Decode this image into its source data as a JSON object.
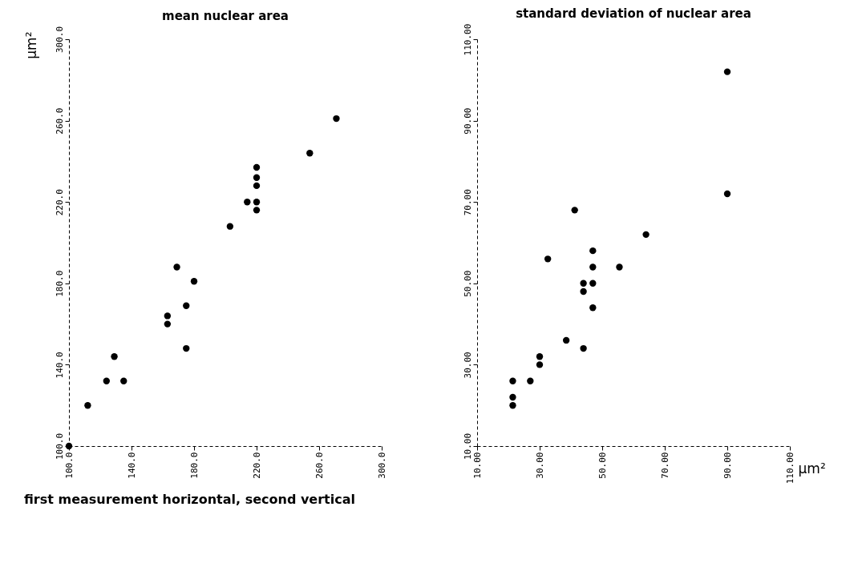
{
  "chart_data": [
    {
      "type": "scatter",
      "title": "mean nuclear area",
      "ylabel": "µm²",
      "annotations": [
        "first measurement horizontal, second vertical"
      ],
      "marker": "circle",
      "grid": false,
      "x": [
        100,
        112,
        124,
        129,
        135,
        163,
        163,
        169,
        175,
        175,
        180,
        203,
        214,
        220,
        220,
        220,
        220,
        220,
        254,
        271
      ],
      "series": [
        {
          "color": "#000000",
          "values": [
            100,
            120,
            132,
            144,
            132,
            160,
            164,
            188,
            169,
            148,
            181,
            208,
            220,
            237,
            232,
            228,
            220,
            216,
            244,
            261
          ]
        }
      ],
      "xlim": [
        100,
        300
      ],
      "ylim": [
        100,
        300
      ],
      "xticks": [
        {
          "value": 100,
          "label": "100.0"
        },
        {
          "value": 140,
          "label": "140.0"
        },
        {
          "value": 180,
          "label": "180.0"
        },
        {
          "value": 220,
          "label": "220.0"
        },
        {
          "value": 260,
          "label": "260.0"
        },
        {
          "value": 300,
          "label": "300.0"
        }
      ],
      "yticks": [
        {
          "value": 100,
          "label": "100.0"
        },
        {
          "value": 140,
          "label": "140.0"
        },
        {
          "value": 180,
          "label": "180.0"
        },
        {
          "value": 220,
          "label": "220.0"
        },
        {
          "value": 260,
          "label": "260.0"
        },
        {
          "value": 300,
          "label": "300.0"
        }
      ]
    },
    {
      "type": "scatter",
      "title": "standard deviation of nuclear area",
      "xlabel": "µm²",
      "marker": "circle",
      "grid": false,
      "x": [
        21.4,
        21.4,
        21.4,
        27,
        30,
        30,
        32.6,
        38.5,
        41.2,
        44,
        44,
        44,
        47,
        47,
        47,
        47,
        55.5,
        64,
        90,
        90
      ],
      "series": [
        {
          "color": "#000000",
          "values": [
            20,
            22,
            26,
            26,
            30,
            32,
            56,
            36,
            68,
            34,
            50,
            48,
            58,
            54,
            50,
            44,
            54,
            62,
            102,
            72
          ]
        }
      ],
      "xlim": [
        10,
        110
      ],
      "ylim": [
        10,
        110
      ],
      "xticks": [
        {
          "value": 10,
          "label": "10.00"
        },
        {
          "value": 30,
          "label": "30.00"
        },
        {
          "value": 50,
          "label": "50.00"
        },
        {
          "value": 70,
          "label": "70.00"
        },
        {
          "value": 90,
          "label": "90.00"
        },
        {
          "value": 110,
          "label": "110.00"
        }
      ],
      "yticks": [
        {
          "value": 10,
          "label": "10.00"
        },
        {
          "value": 30,
          "label": "30.00"
        },
        {
          "value": 50,
          "label": "50.00"
        },
        {
          "value": 70,
          "label": "70.00"
        },
        {
          "value": 90,
          "label": "90.00"
        },
        {
          "value": 110,
          "label": "110.00"
        }
      ]
    }
  ]
}
